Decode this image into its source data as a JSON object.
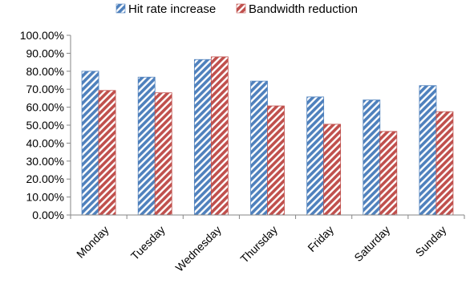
{
  "chart_data": {
    "type": "bar",
    "categories": [
      "Monday",
      "Tuesday",
      "Wednesday",
      "Thursday",
      "Friday",
      "Saturday",
      "Sunday"
    ],
    "series": [
      {
        "name": "Hit rate increase",
        "values": [
          80.0,
          76.7,
          86.5,
          74.5,
          65.7,
          64.0,
          72.0
        ],
        "color": "#4f81bd"
      },
      {
        "name": "Bandwidth reduction",
        "values": [
          69.3,
          68.0,
          88.0,
          60.7,
          50.5,
          46.5,
          57.5
        ],
        "color": "#c0504d"
      }
    ],
    "yticks": [
      "0.00%",
      "10.00%",
      "20.00%",
      "30.00%",
      "40.00%",
      "50.00%",
      "60.00%",
      "70.00%",
      "80.00%",
      "90.00%",
      "100.00%"
    ],
    "ylim": [
      0,
      100
    ],
    "title": "",
    "xlabel": "",
    "ylabel": "",
    "legend_position": "top-center",
    "grid": false,
    "bar_pattern": "diagonal-hatch"
  }
}
